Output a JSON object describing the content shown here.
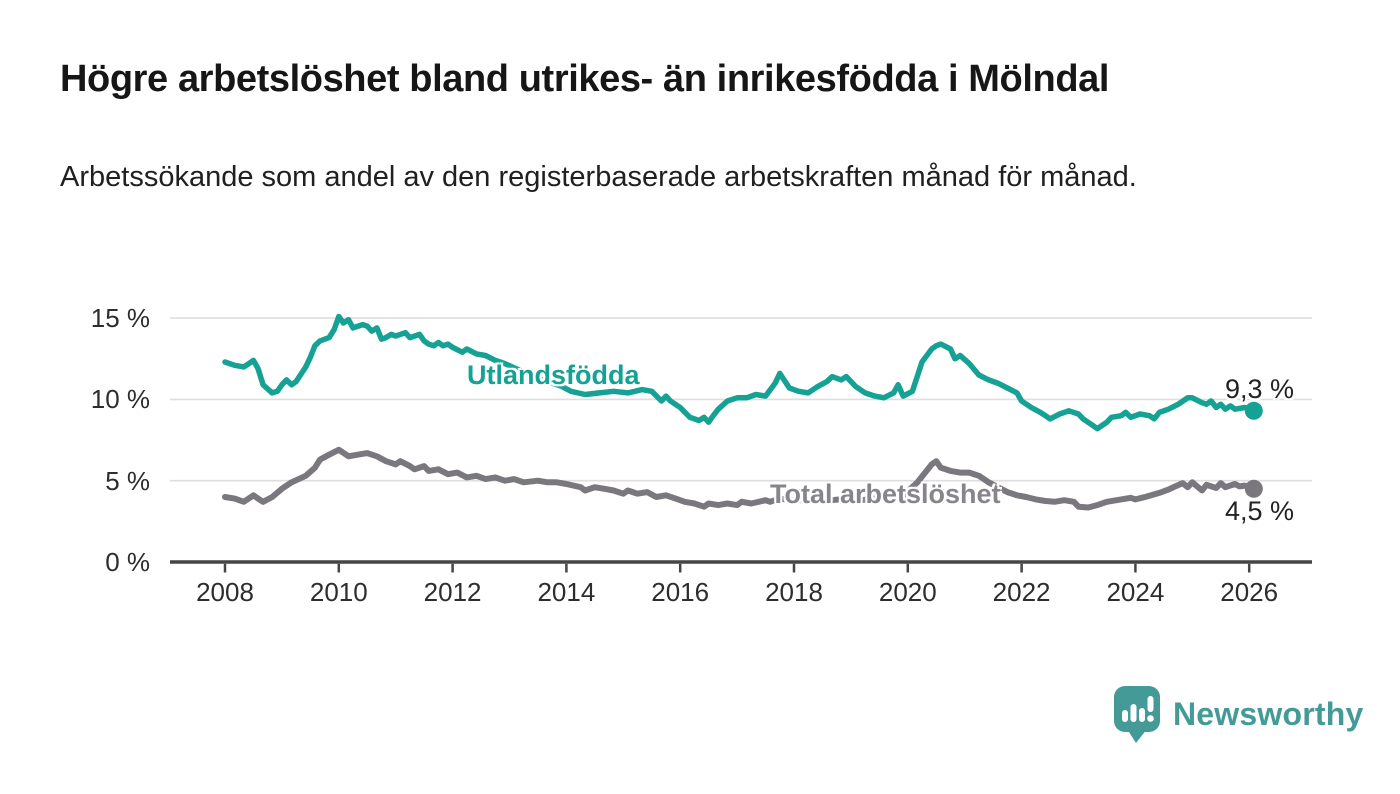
{
  "page": {
    "title": "Högre arbetslöshet bland utrikes- än inrikesfödda i Mölndal",
    "subtitle": "Arbetssökande som andel av den registerbaserade arbetskraften månad för månad."
  },
  "branding": {
    "logo_text": "Newsworthy",
    "logo_icon": "bar-chart-speech-bubble-icon",
    "logo_color": "#449a96"
  },
  "colors": {
    "foreign_line": "#16a195",
    "total_line": "#7a777e",
    "total_label": "#87848b",
    "grid": "#dedede",
    "axis": "#454545",
    "tick_text": "#2d2d2d",
    "value_text": "#232323"
  },
  "chart_data": {
    "type": "line",
    "title": "Högre arbetslöshet bland utrikes- än inrikesfödda i Mölndal",
    "subtitle": "Arbetssökande som andel av den registerbaserade arbetskraften månad för månad.",
    "xlabel": "",
    "ylabel": "",
    "unit": "%",
    "grid": true,
    "legend_position": "inline-labels",
    "ylim": [
      0,
      16
    ],
    "xlim": [
      2007,
      2027.1
    ],
    "y_tick_labels": [
      "15 %",
      "10 %",
      "5 %",
      "0 %"
    ],
    "y_gridlines": [
      15,
      10,
      5
    ],
    "x_tick_years": [
      2008,
      2010,
      2012,
      2014,
      2016,
      2018,
      2020,
      2022,
      2024,
      2026
    ],
    "x_tick_labels": [
      "2008",
      "2010",
      "2012",
      "2014",
      "2016",
      "2018",
      "2020",
      "2022",
      "2024",
      "2026"
    ],
    "series": [
      {
        "name": "Utlandsfödda",
        "color": "#16a195",
        "end_label": "9,3 %",
        "end_value": 9.3,
        "line_width": 5.5,
        "x": [
          2008.0,
          2008.17,
          2008.33,
          2008.42,
          2008.5,
          2008.58,
          2008.67,
          2008.83,
          2008.92,
          2009.0,
          2009.08,
          2009.17,
          2009.25,
          2009.42,
          2009.5,
          2009.58,
          2009.67,
          2009.83,
          2009.92,
          2010.0,
          2010.08,
          2010.17,
          2010.25,
          2010.42,
          2010.5,
          2010.58,
          2010.67,
          2010.75,
          2010.83,
          2010.92,
          2011.0,
          2011.17,
          2011.25,
          2011.42,
          2011.5,
          2011.58,
          2011.67,
          2011.75,
          2011.83,
          2011.92,
          2012.0,
          2012.17,
          2012.25,
          2012.42,
          2012.58,
          2012.75,
          2012.92,
          2013.17,
          2013.42,
          2013.67,
          2013.92,
          2014.08,
          2014.33,
          2014.58,
          2014.83,
          2015.08,
          2015.33,
          2015.5,
          2015.67,
          2015.75,
          2015.83,
          2016.0,
          2016.17,
          2016.33,
          2016.42,
          2016.5,
          2016.58,
          2016.67,
          2016.83,
          2017.0,
          2017.17,
          2017.33,
          2017.5,
          2017.67,
          2017.75,
          2017.92,
          2018.08,
          2018.25,
          2018.42,
          2018.58,
          2018.67,
          2018.83,
          2018.92,
          2019.08,
          2019.25,
          2019.42,
          2019.58,
          2019.75,
          2019.83,
          2019.92,
          2020.08,
          2020.25,
          2020.42,
          2020.5,
          2020.58,
          2020.75,
          2020.83,
          2020.92,
          2021.08,
          2021.25,
          2021.42,
          2021.58,
          2021.75,
          2021.92,
          2022.0,
          2022.17,
          2022.33,
          2022.42,
          2022.5,
          2022.67,
          2022.83,
          2023.0,
          2023.08,
          2023.25,
          2023.33,
          2023.5,
          2023.58,
          2023.75,
          2023.83,
          2023.92,
          2024.08,
          2024.25,
          2024.33,
          2024.42,
          2024.58,
          2024.75,
          2024.92,
          2025.0,
          2025.17,
          2025.25,
          2025.33,
          2025.42,
          2025.5,
          2025.58,
          2025.67,
          2025.75,
          2025.92,
          2026.08
        ],
        "values": [
          12.3,
          12.1,
          12.0,
          12.2,
          12.4,
          11.9,
          10.9,
          10.4,
          10.5,
          10.9,
          11.2,
          10.9,
          11.1,
          12.0,
          12.6,
          13.3,
          13.6,
          13.8,
          14.3,
          15.1,
          14.7,
          14.9,
          14.4,
          14.6,
          14.5,
          14.2,
          14.4,
          13.7,
          13.8,
          14.0,
          13.9,
          14.1,
          13.8,
          14.0,
          13.6,
          13.4,
          13.3,
          13.5,
          13.3,
          13.4,
          13.2,
          12.9,
          13.1,
          12.8,
          12.7,
          12.4,
          12.2,
          11.8,
          11.4,
          11.1,
          10.8,
          10.5,
          10.3,
          10.4,
          10.5,
          10.4,
          10.6,
          10.5,
          9.9,
          10.2,
          9.9,
          9.5,
          8.9,
          8.7,
          8.9,
          8.6,
          9.0,
          9.4,
          9.9,
          10.1,
          10.1,
          10.3,
          10.2,
          11.0,
          11.6,
          10.7,
          10.5,
          10.4,
          10.8,
          11.1,
          11.4,
          11.2,
          11.4,
          10.8,
          10.4,
          10.2,
          10.1,
          10.4,
          10.9,
          10.2,
          10.5,
          12.3,
          13.1,
          13.3,
          13.4,
          13.1,
          12.5,
          12.7,
          12.2,
          11.5,
          11.2,
          11.0,
          10.7,
          10.4,
          9.9,
          9.5,
          9.2,
          9.0,
          8.8,
          9.1,
          9.3,
          9.1,
          8.8,
          8.4,
          8.2,
          8.6,
          8.9,
          9.0,
          9.2,
          8.9,
          9.1,
          9.0,
          8.8,
          9.2,
          9.4,
          9.7,
          10.1,
          10.1,
          9.8,
          9.7,
          9.9,
          9.5,
          9.7,
          9.4,
          9.6,
          9.4,
          9.5,
          9.3
        ]
      },
      {
        "name": "Total arbetslöshet",
        "color": "#7a777e",
        "end_label": "4,5 %",
        "end_value": 4.5,
        "line_width": 6,
        "x": [
          2008.0,
          2008.17,
          2008.33,
          2008.5,
          2008.58,
          2008.67,
          2008.83,
          2009.0,
          2009.17,
          2009.42,
          2009.58,
          2009.67,
          2009.83,
          2010.0,
          2010.17,
          2010.33,
          2010.5,
          2010.67,
          2010.83,
          2011.0,
          2011.08,
          2011.25,
          2011.33,
          2011.5,
          2011.58,
          2011.75,
          2011.92,
          2012.08,
          2012.25,
          2012.42,
          2012.58,
          2012.75,
          2012.92,
          2013.08,
          2013.25,
          2013.5,
          2013.67,
          2013.83,
          2014.0,
          2014.25,
          2014.33,
          2014.5,
          2014.67,
          2014.83,
          2015.0,
          2015.08,
          2015.25,
          2015.42,
          2015.58,
          2015.75,
          2015.92,
          2016.08,
          2016.25,
          2016.42,
          2016.5,
          2016.67,
          2016.83,
          2017.0,
          2017.08,
          2017.25,
          2017.5,
          2017.58,
          2017.75,
          2017.92,
          2018.17,
          2018.42,
          2018.67,
          2018.92,
          2019.17,
          2019.42,
          2019.67,
          2019.92,
          2020.17,
          2020.42,
          2020.5,
          2020.58,
          2020.75,
          2020.92,
          2021.08,
          2021.25,
          2021.42,
          2021.58,
          2021.75,
          2021.92,
          2022.08,
          2022.25,
          2022.42,
          2022.58,
          2022.75,
          2022.92,
          2023.0,
          2023.17,
          2023.33,
          2023.5,
          2023.67,
          2023.92,
          2024.0,
          2024.17,
          2024.42,
          2024.58,
          2024.67,
          2024.83,
          2024.92,
          2025.0,
          2025.17,
          2025.25,
          2025.42,
          2025.5,
          2025.58,
          2025.75,
          2025.83,
          2025.92,
          2026.08
        ],
        "values": [
          4.0,
          3.9,
          3.7,
          4.1,
          3.9,
          3.7,
          4.0,
          4.5,
          4.9,
          5.3,
          5.8,
          6.3,
          6.6,
          6.9,
          6.5,
          6.6,
          6.7,
          6.5,
          6.2,
          6.0,
          6.2,
          5.9,
          5.7,
          5.9,
          5.6,
          5.7,
          5.4,
          5.5,
          5.2,
          5.3,
          5.1,
          5.2,
          5.0,
          5.1,
          4.9,
          5.0,
          4.9,
          4.9,
          4.8,
          4.6,
          4.4,
          4.6,
          4.5,
          4.4,
          4.2,
          4.4,
          4.2,
          4.3,
          4.0,
          4.1,
          3.9,
          3.7,
          3.6,
          3.4,
          3.6,
          3.5,
          3.6,
          3.5,
          3.7,
          3.6,
          3.8,
          3.7,
          3.9,
          3.8,
          3.8,
          3.9,
          3.8,
          3.9,
          3.8,
          3.9,
          4.0,
          4.1,
          4.9,
          6.0,
          6.2,
          5.8,
          5.6,
          5.5,
          5.5,
          5.3,
          4.9,
          4.6,
          4.3,
          4.1,
          4.0,
          3.85,
          3.75,
          3.7,
          3.8,
          3.7,
          3.4,
          3.35,
          3.5,
          3.7,
          3.8,
          3.95,
          3.85,
          4.0,
          4.25,
          4.45,
          4.6,
          4.85,
          4.6,
          4.9,
          4.4,
          4.75,
          4.55,
          4.85,
          4.6,
          4.8,
          4.65,
          4.7,
          4.5
        ]
      }
    ]
  }
}
